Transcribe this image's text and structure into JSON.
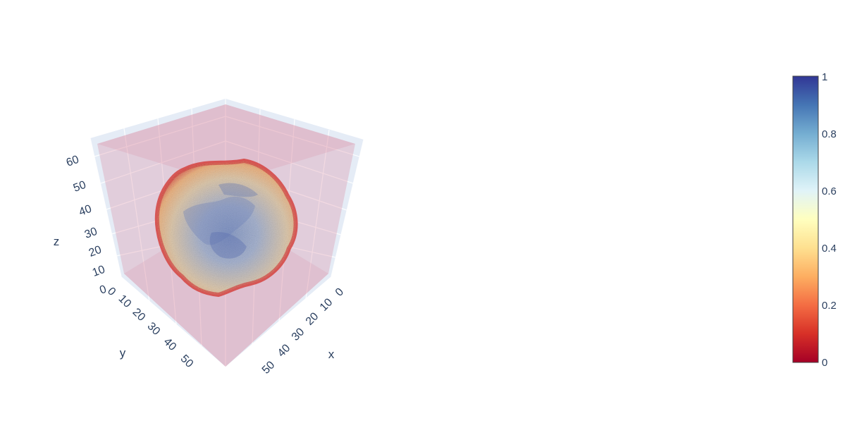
{
  "chart_data": {
    "type": "volume",
    "axes": {
      "x": {
        "title": "x",
        "ticks": [
          "0",
          "10",
          "20",
          "30",
          "40",
          "50"
        ]
      },
      "y": {
        "title": "y",
        "ticks": [
          "0",
          "10",
          "20",
          "30",
          "40",
          "50"
        ]
      },
      "z": {
        "title": "z",
        "ticks": [
          "0",
          "10",
          "20",
          "30",
          "40",
          "50",
          "60"
        ]
      }
    },
    "colorscale": {
      "name": "RdYlBu",
      "colors": [
        "#a50026",
        "#d73027",
        "#f46d43",
        "#fdae61",
        "#fee090",
        "#ffffbf",
        "#e0f3f8",
        "#abd9e9",
        "#74add1",
        "#4575b4",
        "#313695"
      ],
      "range": [
        0,
        1
      ],
      "ticks": [
        "0",
        "0.2",
        "0.4",
        "0.6",
        "0.8",
        "1"
      ]
    },
    "grid": true,
    "legend_placement": "right",
    "background_color": "#e5ecf6"
  }
}
